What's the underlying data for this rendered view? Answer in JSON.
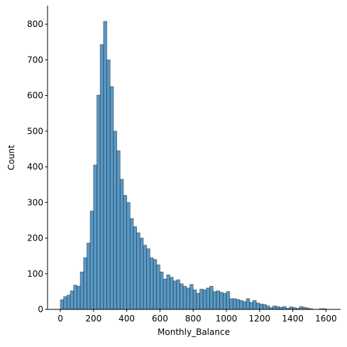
{
  "chart_data": {
    "type": "histogram",
    "x_label": "Monthly_Balance",
    "y_label": "Count",
    "color": "#1f77b4",
    "bins": [
      0,
      20,
      40,
      60,
      80,
      100,
      120,
      140,
      160,
      180,
      200,
      220,
      240,
      260,
      280,
      300,
      320,
      340,
      360,
      380,
      400,
      420,
      440,
      460,
      480,
      500,
      520,
      540,
      560,
      580,
      600,
      620,
      640,
      660,
      680,
      700,
      720,
      740,
      760,
      780,
      800,
      820,
      840,
      860,
      880,
      900,
      920,
      940,
      960,
      980,
      1000,
      1020,
      1040,
      1060,
      1080,
      1100,
      1120,
      1140,
      1160,
      1180,
      1200,
      1220,
      1240,
      1260,
      1280,
      1300,
      1320,
      1340,
      1360,
      1380,
      1400,
      1420,
      1440,
      1460,
      1480,
      1500,
      1520,
      1540,
      1560,
      1580,
      1600
    ],
    "values": [
      27,
      36,
      40,
      52,
      68,
      65,
      105,
      145,
      186,
      276,
      405,
      601,
      743,
      808,
      700,
      625,
      500,
      445,
      365,
      320,
      300,
      255,
      232,
      215,
      200,
      180,
      170,
      145,
      140,
      125,
      105,
      85,
      97,
      90,
      80,
      83,
      72,
      65,
      60,
      70,
      55,
      45,
      57,
      55,
      60,
      65,
      50,
      52,
      48,
      45,
      50,
      30,
      30,
      28,
      25,
      22,
      30,
      20,
      25,
      18,
      15,
      14,
      10,
      5,
      10,
      8,
      6,
      8,
      3,
      7,
      5,
      3,
      8,
      6,
      4,
      2,
      0,
      0,
      2,
      2
    ],
    "xlim": [
      -77,
      1688
    ],
    "ylim": [
      0,
      852
    ],
    "xticks": [
      0,
      200,
      400,
      600,
      800,
      1000,
      1200,
      1400,
      1600
    ],
    "yticks": [
      0,
      100,
      200,
      300,
      400,
      500,
      600,
      700,
      800
    ]
  }
}
